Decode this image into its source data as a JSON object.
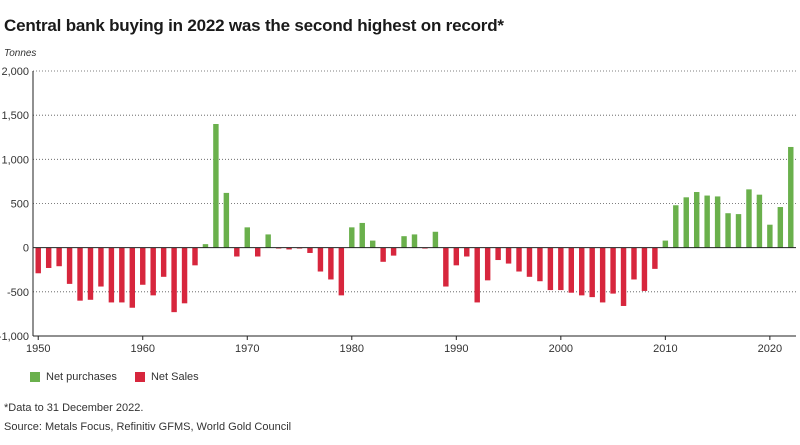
{
  "chart_data": {
    "type": "bar",
    "title": "Central bank buying in 2022 was the second highest on record*",
    "ylabel": "Tonnes",
    "xlabel": "",
    "ylim": [
      -1000,
      2000
    ],
    "y_ticks": [
      "2,000",
      "1,500",
      "1,000",
      "500",
      "0",
      "-500",
      "-1,000"
    ],
    "y_tick_values": [
      2000,
      1500,
      1000,
      500,
      0,
      -500,
      -1000
    ],
    "x_ticks": [
      "1950",
      "1960",
      "1970",
      "1980",
      "1990",
      "2000",
      "2010",
      "2020"
    ],
    "x_tick_values": [
      1950,
      1960,
      1970,
      1980,
      1990,
      2000,
      2010,
      2020
    ],
    "grid": "horizontal dotted",
    "legend_position": "bottom-left",
    "series": [
      {
        "name": "Net purchases",
        "color": "#6ab04c"
      },
      {
        "name": "Net Sales",
        "color": "#d7263d"
      }
    ],
    "years": [
      1950,
      1951,
      1952,
      1953,
      1954,
      1955,
      1956,
      1957,
      1958,
      1959,
      1960,
      1961,
      1962,
      1963,
      1964,
      1965,
      1966,
      1967,
      1968,
      1969,
      1970,
      1971,
      1972,
      1973,
      1974,
      1975,
      1976,
      1977,
      1978,
      1979,
      1980,
      1981,
      1982,
      1983,
      1984,
      1985,
      1986,
      1987,
      1988,
      1989,
      1990,
      1991,
      1992,
      1993,
      1994,
      1995,
      1996,
      1997,
      1998,
      1999,
      2000,
      2001,
      2002,
      2003,
      2004,
      2005,
      2006,
      2007,
      2008,
      2009,
      2010,
      2011,
      2012,
      2013,
      2014,
      2015,
      2016,
      2017,
      2018,
      2019,
      2020,
      2021,
      2022
    ],
    "values": [
      -290,
      -230,
      -210,
      -410,
      -600,
      -590,
      -440,
      -620,
      -620,
      -680,
      -420,
      -540,
      -330,
      -730,
      -630,
      -200,
      40,
      1400,
      620,
      -100,
      230,
      -100,
      150,
      -10,
      -20,
      -10,
      -60,
      -270,
      -360,
      -540,
      230,
      280,
      80,
      -160,
      -90,
      130,
      150,
      -10,
      180,
      -440,
      -200,
      -100,
      -620,
      -370,
      -140,
      -180,
      -270,
      -330,
      -380,
      -480,
      -480,
      -510,
      -540,
      -560,
      -620,
      -520,
      -660,
      -360,
      -490,
      -240,
      80,
      480,
      570,
      630,
      590,
      580,
      390,
      380,
      660,
      600,
      260,
      460,
      1140
    ]
  },
  "legend": {
    "purchases_label": "Net purchases",
    "sales_label": "Net Sales",
    "purchases_color": "#6ab04c",
    "sales_color": "#d7263d"
  },
  "footnote": "*Data to 31 December 2022.",
  "source": "Source: Metals Focus, Refinitiv GFMS, World Gold Council"
}
